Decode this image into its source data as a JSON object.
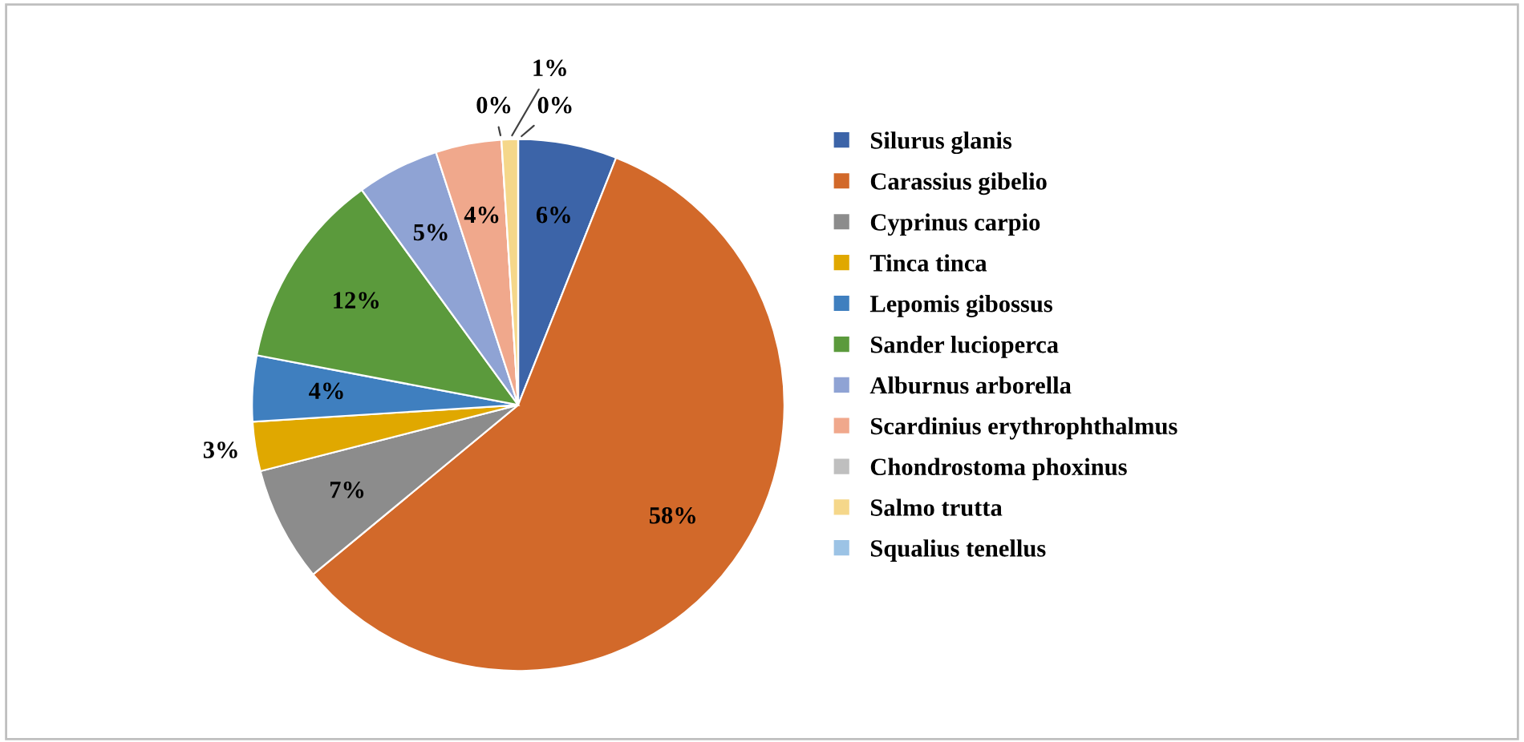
{
  "chart_data": {
    "type": "pie",
    "categories": [
      "Silurus glanis",
      "Carassius gibelio",
      "Cyprinus carpio",
      "Tinca tinca",
      "Lepomis gibossus",
      "Sander lucioperca",
      "Alburnus arborella",
      "Scardinius erythrophthalmus",
      "Chondrostoma phoxinus",
      "Salmo trutta",
      "Squalius tenellus"
    ],
    "values": [
      6,
      58,
      7,
      3,
      4,
      12,
      5,
      4,
      0,
      1,
      0
    ],
    "colors": [
      "#3c64a8",
      "#d2692a",
      "#8c8c8c",
      "#e0a800",
      "#3f7fbf",
      "#5b9a3c",
      "#8fa3d4",
      "#f0a88c",
      "#bfbfbf",
      "#f5d78a",
      "#9cc3e5"
    ],
    "value_labels": [
      "6%",
      "58%",
      "7%",
      "3%",
      "4%",
      "12%",
      "5%",
      "4%",
      "0%",
      "1%",
      "0%"
    ],
    "legend": "right"
  }
}
